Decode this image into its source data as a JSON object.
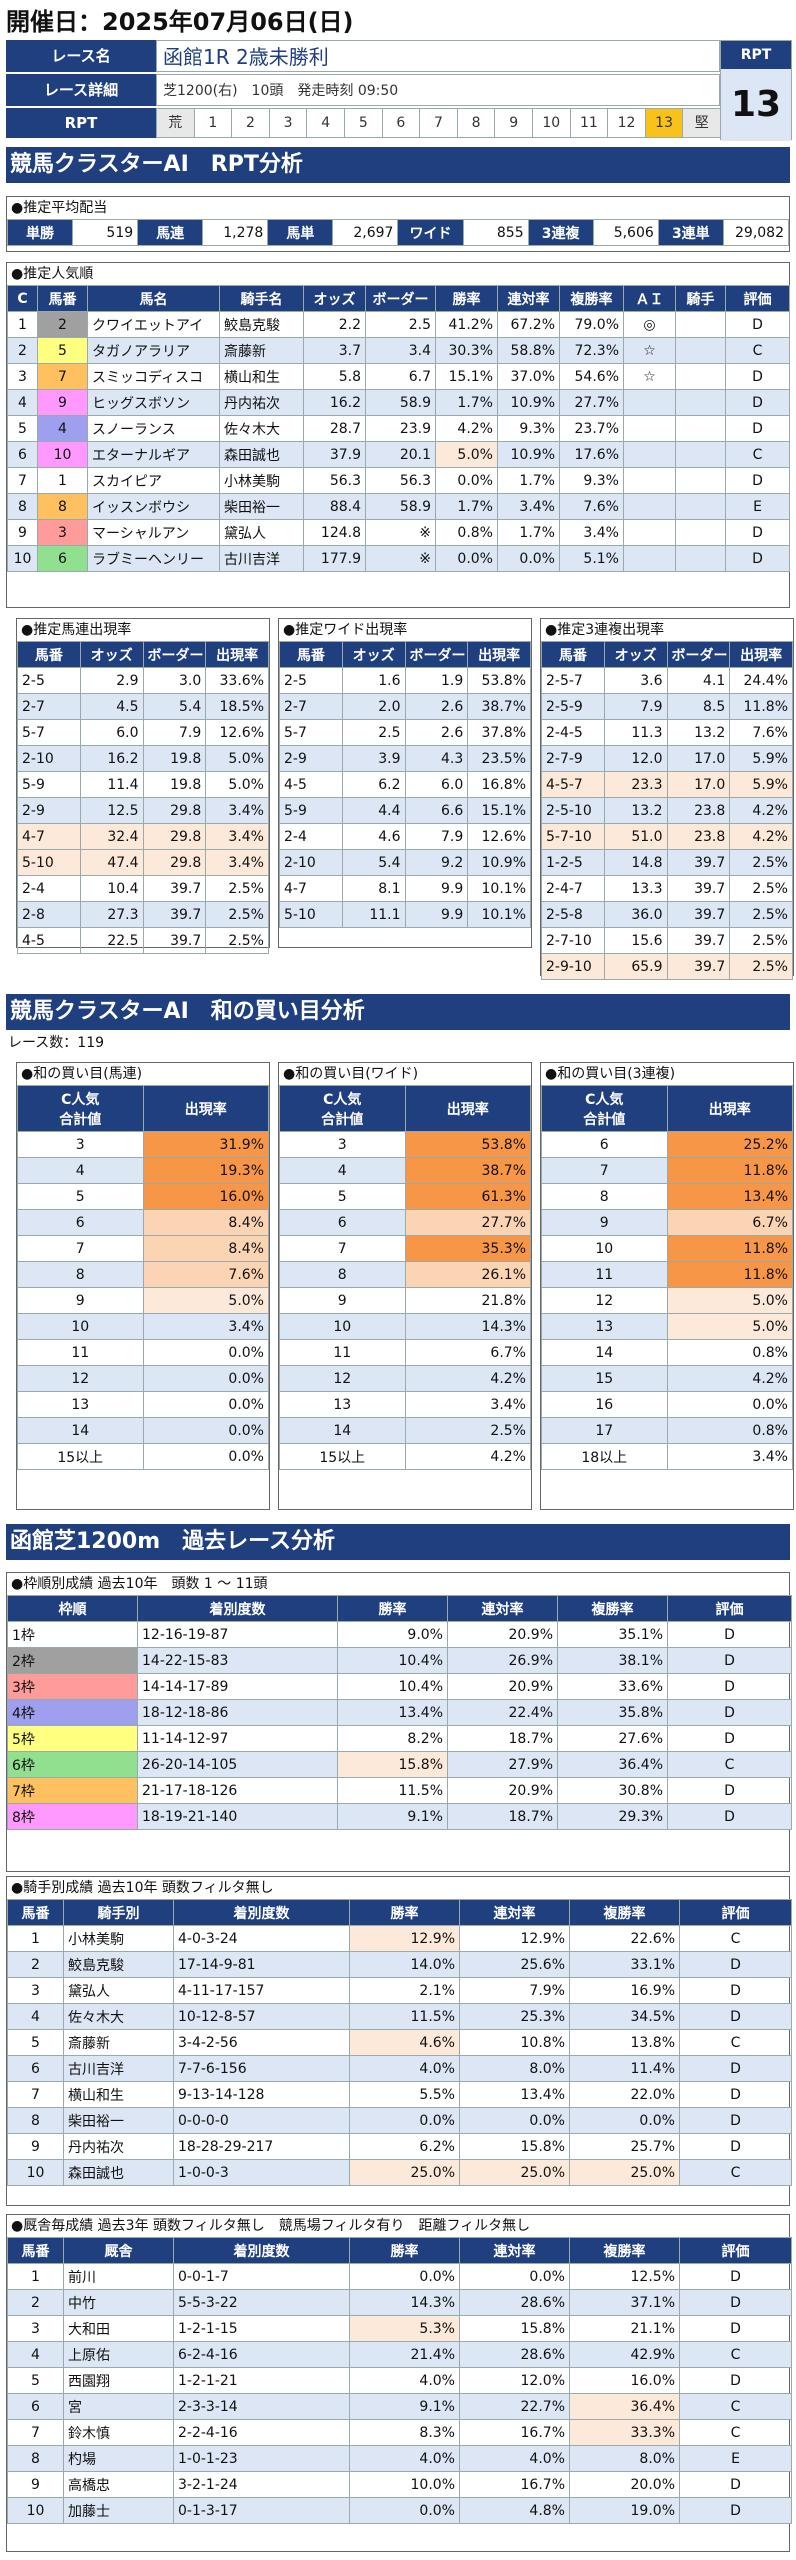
{
  "page_title": "開催日：2025年07月06日(日)",
  "race": {
    "name_label": "レース名",
    "name": "函館1R 2歳未勝利",
    "detail_label": "レース詳細",
    "detail": "芝1200(右)　10頭　発走時刻 09:50",
    "rpt_label": "RPT",
    "scale": [
      "荒",
      "1",
      "2",
      "3",
      "4",
      "5",
      "6",
      "7",
      "8",
      "9",
      "10",
      "11",
      "12",
      "13",
      "堅"
    ],
    "rpt_box_label": "RPT",
    "rpt_value": "13",
    "rpt_active": "13"
  },
  "sec1": {
    "title": "競馬クラスターAI　RPT分析"
  },
  "avg": {
    "caption": "●推定平均配当",
    "items": [
      {
        "k": "単勝",
        "v": "519"
      },
      {
        "k": "馬連",
        "v": "1,278"
      },
      {
        "k": "馬単",
        "v": "2,697"
      },
      {
        "k": "ワイド",
        "v": "855"
      },
      {
        "k": "3連複",
        "v": "5,606"
      },
      {
        "k": "3連単",
        "v": "29,082"
      }
    ]
  },
  "pop": {
    "caption": "●推定人気順",
    "headers": [
      "C",
      "馬番",
      "馬名",
      "騎手名",
      "オッズ",
      "ボーダー",
      "勝率",
      "連対率",
      "複勝率",
      "ＡＩ",
      "騎手",
      "評価"
    ],
    "rows": [
      [
        "1",
        "2",
        "クワイエットアイ",
        "鮫島克駿",
        "2.2",
        "2.5",
        "41.2%",
        "67.2%",
        "79.0%",
        "◎",
        "",
        "D"
      ],
      [
        "2",
        "5",
        "タガノアラリア",
        "斎藤新",
        "3.7",
        "3.4",
        "30.3%",
        "58.8%",
        "72.3%",
        "☆",
        "",
        "C"
      ],
      [
        "3",
        "7",
        "スミッコディスコ",
        "横山和生",
        "5.8",
        "6.7",
        "15.1%",
        "37.0%",
        "54.6%",
        "☆",
        "",
        "D"
      ],
      [
        "4",
        "9",
        "ヒッグスボソン",
        "丹内祐次",
        "16.2",
        "58.9",
        "1.7%",
        "10.9%",
        "27.7%",
        "",
        "",
        "D"
      ],
      [
        "5",
        "4",
        "スノーランス",
        "佐々木大",
        "28.7",
        "23.9",
        "4.2%",
        "9.3%",
        "23.7%",
        "",
        "",
        "D"
      ],
      [
        "6",
        "10",
        "エターナルギア",
        "森田誠也",
        "37.9",
        "20.1",
        "5.0%",
        "10.9%",
        "17.6%",
        "",
        "",
        "C"
      ],
      [
        "7",
        "1",
        "スカイピア",
        "小林美駒",
        "56.3",
        "56.3",
        "0.0%",
        "1.7%",
        "9.3%",
        "",
        "",
        "D"
      ],
      [
        "8",
        "8",
        "イッスンボウシ",
        "柴田裕一",
        "88.4",
        "58.9",
        "1.7%",
        "3.4%",
        "7.6%",
        "",
        "",
        "E"
      ],
      [
        "9",
        "3",
        "マーシャルアン",
        "黛弘人",
        "124.8",
        "※",
        "0.8%",
        "1.7%",
        "3.4%",
        "",
        "",
        "D"
      ],
      [
        "10",
        "6",
        "ラブミーヘンリー",
        "古川吉洋",
        "177.9",
        "※",
        "0.0%",
        "0.0%",
        "5.1%",
        "",
        "",
        "D"
      ]
    ]
  },
  "umaren": {
    "caption": "●推定馬連出現率",
    "headers": [
      "馬番",
      "オッズ",
      "ボーダー",
      "出現率"
    ],
    "rows": [
      [
        "2-5",
        "2.9",
        "3.0",
        "33.6%"
      ],
      [
        "2-7",
        "4.5",
        "5.4",
        "18.5%"
      ],
      [
        "5-7",
        "6.0",
        "7.9",
        "12.6%"
      ],
      [
        "2-10",
        "16.2",
        "19.8",
        "5.0%"
      ],
      [
        "5-9",
        "11.4",
        "19.8",
        "5.0%"
      ],
      [
        "2-9",
        "12.5",
        "29.8",
        "3.4%"
      ],
      [
        "4-7",
        "32.4",
        "29.8",
        "3.4%"
      ],
      [
        "5-10",
        "47.4",
        "29.8",
        "3.4%"
      ],
      [
        "2-4",
        "10.4",
        "39.7",
        "2.5%"
      ],
      [
        "2-8",
        "27.3",
        "39.7",
        "2.5%"
      ],
      [
        "4-5",
        "22.5",
        "39.7",
        "2.5%"
      ]
    ]
  },
  "wide": {
    "caption": "●推定ワイド出現率",
    "headers": [
      "馬番",
      "オッズ",
      "ボーダー",
      "出現率"
    ],
    "rows": [
      [
        "2-5",
        "1.6",
        "1.9",
        "53.8%"
      ],
      [
        "2-7",
        "2.0",
        "2.6",
        "38.7%"
      ],
      [
        "5-7",
        "2.5",
        "2.6",
        "37.8%"
      ],
      [
        "2-9",
        "3.9",
        "4.3",
        "23.5%"
      ],
      [
        "4-5",
        "6.2",
        "6.0",
        "16.8%"
      ],
      [
        "5-9",
        "4.4",
        "6.6",
        "15.1%"
      ],
      [
        "2-4",
        "4.6",
        "7.9",
        "12.6%"
      ],
      [
        "2-10",
        "5.4",
        "9.2",
        "10.9%"
      ],
      [
        "4-7",
        "8.1",
        "9.9",
        "10.1%"
      ],
      [
        "5-10",
        "11.1",
        "9.9",
        "10.1%"
      ]
    ]
  },
  "trio": {
    "caption": "●推定3連複出現率",
    "headers": [
      "馬番",
      "オッズ",
      "ボーダー",
      "出現率"
    ],
    "rows": [
      [
        "2-5-7",
        "3.6",
        "4.1",
        "24.4%"
      ],
      [
        "2-5-9",
        "7.9",
        "8.5",
        "11.8%"
      ],
      [
        "2-4-5",
        "11.3",
        "13.2",
        "7.6%"
      ],
      [
        "2-7-9",
        "12.0",
        "17.0",
        "5.9%"
      ],
      [
        "4-5-7",
        "23.3",
        "17.0",
        "5.9%"
      ],
      [
        "2-5-10",
        "13.2",
        "23.8",
        "4.2%"
      ],
      [
        "5-7-10",
        "51.0",
        "23.8",
        "4.2%"
      ],
      [
        "1-2-5",
        "14.8",
        "39.7",
        "2.5%"
      ],
      [
        "2-4-7",
        "13.3",
        "39.7",
        "2.5%"
      ],
      [
        "2-5-8",
        "36.0",
        "39.7",
        "2.5%"
      ],
      [
        "2-7-10",
        "15.6",
        "39.7",
        "2.5%"
      ],
      [
        "2-9-10",
        "65.9",
        "39.7",
        "2.5%"
      ]
    ]
  },
  "sec2": {
    "title": "競馬クラスターAI　和の買い目分析",
    "race_count": "レース数：119"
  },
  "wa_umaren": {
    "caption": "●和の買い目(馬連)",
    "h1": "C人気",
    "h1b": "合計値",
    "h2": "出現率",
    "rows": [
      [
        "3",
        "31.9%"
      ],
      [
        "4",
        "19.3%"
      ],
      [
        "5",
        "16.0%"
      ],
      [
        "6",
        "8.4%"
      ],
      [
        "7",
        "8.4%"
      ],
      [
        "8",
        "7.6%"
      ],
      [
        "9",
        "5.0%"
      ],
      [
        "10",
        "3.4%"
      ],
      [
        "11",
        "0.0%"
      ],
      [
        "12",
        "0.0%"
      ],
      [
        "13",
        "0.0%"
      ],
      [
        "14",
        "0.0%"
      ],
      [
        "15以上",
        "0.0%"
      ]
    ]
  },
  "wa_wide": {
    "caption": "●和の買い目(ワイド)",
    "h1": "C人気",
    "h1b": "合計値",
    "h2": "出現率",
    "rows": [
      [
        "3",
        "53.8%"
      ],
      [
        "4",
        "38.7%"
      ],
      [
        "5",
        "61.3%"
      ],
      [
        "6",
        "27.7%"
      ],
      [
        "7",
        "35.3%"
      ],
      [
        "8",
        "26.1%"
      ],
      [
        "9",
        "21.8%"
      ],
      [
        "10",
        "14.3%"
      ],
      [
        "11",
        "6.7%"
      ],
      [
        "12",
        "4.2%"
      ],
      [
        "13",
        "3.4%"
      ],
      [
        "14",
        "2.5%"
      ],
      [
        "15以上",
        "4.2%"
      ]
    ]
  },
  "wa_trio": {
    "caption": "●和の買い目(3連複)",
    "h1": "C人気",
    "h1b": "合計値",
    "h2": "出現率",
    "rows": [
      [
        "6",
        "25.2%"
      ],
      [
        "7",
        "11.8%"
      ],
      [
        "8",
        "13.4%"
      ],
      [
        "9",
        "6.7%"
      ],
      [
        "10",
        "11.8%"
      ],
      [
        "11",
        "11.8%"
      ],
      [
        "12",
        "5.0%"
      ],
      [
        "13",
        "5.0%"
      ],
      [
        "14",
        "0.8%"
      ],
      [
        "15",
        "4.2%"
      ],
      [
        "16",
        "0.0%"
      ],
      [
        "17",
        "0.8%"
      ],
      [
        "18以上",
        "3.4%"
      ]
    ]
  },
  "sec3": {
    "title": "函館芝1200m　過去レース分析"
  },
  "waku": {
    "caption": "●枠順別成績 過去10年　頭数 1 ～ 11頭",
    "headers": [
      "枠順",
      "着別度数",
      "勝率",
      "連対率",
      "複勝率",
      "評価"
    ],
    "rows": [
      [
        "1枠",
        "12-16-19-87",
        "9.0%",
        "20.9%",
        "35.1%",
        "D"
      ],
      [
        "2枠",
        "14-22-15-83",
        "10.4%",
        "26.9%",
        "38.1%",
        "D"
      ],
      [
        "3枠",
        "14-14-17-89",
        "10.4%",
        "20.9%",
        "33.6%",
        "D"
      ],
      [
        "4枠",
        "18-12-18-86",
        "13.4%",
        "22.4%",
        "35.8%",
        "D"
      ],
      [
        "5枠",
        "11-14-12-97",
        "8.2%",
        "18.7%",
        "27.6%",
        "D"
      ],
      [
        "6枠",
        "26-20-14-105",
        "15.8%",
        "27.9%",
        "36.4%",
        "C"
      ],
      [
        "7枠",
        "21-17-18-126",
        "11.5%",
        "20.9%",
        "30.8%",
        "D"
      ],
      [
        "8枠",
        "18-19-21-140",
        "9.1%",
        "18.7%",
        "29.3%",
        "D"
      ]
    ]
  },
  "jockey": {
    "caption": "●騎手別成績 過去10年 頭数フィルタ無し",
    "headers": [
      "馬番",
      "騎手別",
      "着別度数",
      "勝率",
      "連対率",
      "複勝率",
      "評価"
    ],
    "rows": [
      [
        "1",
        "小林美駒",
        "4-0-3-24",
        "12.9%",
        "12.9%",
        "22.6%",
        "C"
      ],
      [
        "2",
        "鮫島克駿",
        "17-14-9-81",
        "14.0%",
        "25.6%",
        "33.1%",
        "D"
      ],
      [
        "3",
        "黛弘人",
        "4-11-17-157",
        "2.1%",
        "7.9%",
        "16.9%",
        "D"
      ],
      [
        "4",
        "佐々木大",
        "10-12-8-57",
        "11.5%",
        "25.3%",
        "34.5%",
        "D"
      ],
      [
        "5",
        "斎藤新",
        "3-4-2-56",
        "4.6%",
        "10.8%",
        "13.8%",
        "C"
      ],
      [
        "6",
        "古川吉洋",
        "7-7-6-156",
        "4.0%",
        "8.0%",
        "11.4%",
        "D"
      ],
      [
        "7",
        "横山和生",
        "9-13-14-128",
        "5.5%",
        "13.4%",
        "22.0%",
        "D"
      ],
      [
        "8",
        "柴田裕一",
        "0-0-0-0",
        "0.0%",
        "0.0%",
        "0.0%",
        "D"
      ],
      [
        "9",
        "丹内祐次",
        "18-28-29-217",
        "6.2%",
        "15.8%",
        "25.7%",
        "D"
      ],
      [
        "10",
        "森田誠也",
        "1-0-0-3",
        "25.0%",
        "25.0%",
        "25.0%",
        "C"
      ]
    ]
  },
  "stable": {
    "caption": "●厩舎毎成績 過去3年 頭数フィルタ無し　競馬場フィルタ有り　距離フィルタ無し",
    "headers": [
      "馬番",
      "厩舎",
      "着別度数",
      "勝率",
      "連対率",
      "複勝率",
      "評価"
    ],
    "rows": [
      [
        "1",
        "前川",
        "0-0-1-7",
        "0.0%",
        "0.0%",
        "12.5%",
        "D"
      ],
      [
        "2",
        "中竹",
        "5-5-3-22",
        "14.3%",
        "28.6%",
        "37.1%",
        "D"
      ],
      [
        "3",
        "大和田",
        "1-2-1-15",
        "5.3%",
        "15.8%",
        "21.1%",
        "D"
      ],
      [
        "4",
        "上原佑",
        "6-2-4-16",
        "21.4%",
        "28.6%",
        "42.9%",
        "C"
      ],
      [
        "5",
        "西園翔",
        "1-2-1-21",
        "4.0%",
        "12.0%",
        "16.0%",
        "D"
      ],
      [
        "6",
        "宮",
        "2-3-3-14",
        "9.1%",
        "22.7%",
        "36.4%",
        "C"
      ],
      [
        "7",
        "鈴木慎",
        "2-2-4-16",
        "8.3%",
        "16.7%",
        "33.3%",
        "C"
      ],
      [
        "8",
        "杓場",
        "1-0-1-23",
        "4.0%",
        "4.0%",
        "8.0%",
        "E"
      ],
      [
        "9",
        "高橋忠",
        "3-2-1-24",
        "10.0%",
        "16.7%",
        "20.0%",
        "D"
      ],
      [
        "10",
        "加藤士",
        "0-1-3-17",
        "0.0%",
        "4.8%",
        "19.0%",
        "D"
      ]
    ]
  },
  "colors": {
    "navy": "#1f3f7f",
    "alt": "#dce6f4",
    "hot1": "#f79646",
    "hot2": "#fbd4b4",
    "hot3": "#fde9d9",
    "active": "#f9c21b"
  },
  "waku_colors": [
    "#ffffff",
    "#a0a0a0",
    "#ff9b9b",
    "#9f9ff0",
    "#ffff80",
    "#90e090",
    "#ffc060",
    "#ff99ff"
  ]
}
